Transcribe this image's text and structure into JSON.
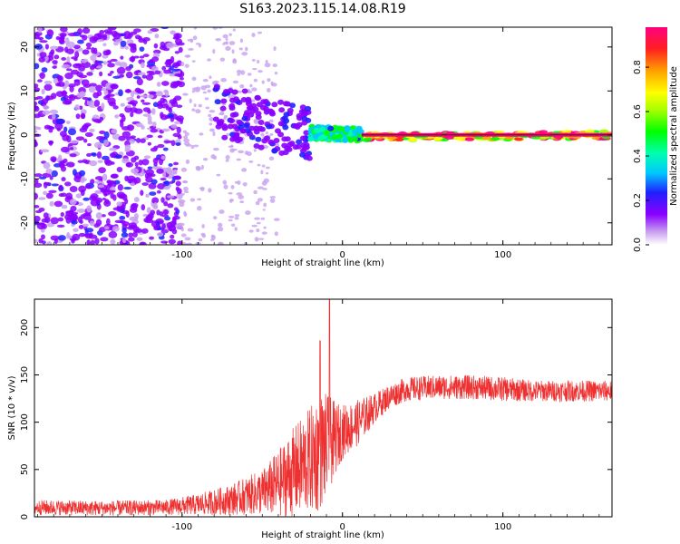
{
  "title": "S163.2023.115.14.08.R19",
  "chart_data": [
    {
      "type": "heatmap",
      "xlabel": "Height of straight line (km)",
      "ylabel": "Frequency (Hz)",
      "xlim": [
        -192,
        168
      ],
      "ylim": [
        -25,
        24.5
      ],
      "x_ticks": [
        "-100",
        "0",
        "100"
      ],
      "x_tick_values": [
        -100,
        0,
        100
      ],
      "y_ticks": [
        "-20",
        "-10",
        "0",
        "10",
        "20"
      ],
      "y_tick_values": [
        -20,
        -10,
        0,
        10,
        20
      ],
      "colorbar": {
        "label": "Normalized spectral amplitude",
        "range": [
          0,
          0.98
        ],
        "ticks": [
          "0.0",
          "0.2",
          "0.4",
          "0.6",
          "0.8"
        ],
        "tick_values": [
          0,
          0.2,
          0.4,
          0.6,
          0.8
        ]
      },
      "tone_segments": [
        {
          "x": [
            -80,
            -20
          ],
          "freq": [
            6,
            0
          ],
          "amplitude": 0.15
        },
        {
          "x": [
            -20,
            12
          ],
          "freq": [
            0.5,
            0
          ],
          "amplitude": 0.45
        },
        {
          "x": [
            12,
            168
          ],
          "freq": [
            -0.5,
            0
          ],
          "amplitude": 0.9
        }
      ],
      "noise_region": {
        "x": [
          -192,
          -100
        ],
        "freq": [
          -25,
          24.5
        ],
        "amplitude": 0.1
      }
    },
    {
      "type": "line",
      "xlabel": "Height of straight line (km)",
      "ylabel": "SNR (10 * v/v)",
      "xlim": [
        -192,
        168
      ],
      "ylim": [
        0,
        230
      ],
      "x_ticks": [
        "-100",
        "0",
        "100"
      ],
      "x_tick_values": [
        -100,
        0,
        100
      ],
      "y_ticks": [
        "0",
        "50",
        "100",
        "150",
        "200"
      ],
      "y_tick_values": [
        0,
        50,
        100,
        150,
        200
      ],
      "grid": false,
      "series": [
        {
          "color": "#ee3030",
          "envelope_x": [
            -192,
            -150,
            -110,
            -90,
            -70,
            -50,
            -40,
            -30,
            -20,
            -15,
            -10,
            -5,
            0,
            10,
            20,
            30,
            40,
            60,
            80,
            100,
            120,
            140,
            168
          ],
          "envelope_mean": [
            10,
            9,
            10,
            13,
            18,
            26,
            35,
            48,
            60,
            68,
            75,
            82,
            90,
            100,
            115,
            128,
            135,
            137,
            137,
            135,
            133,
            133,
            133
          ],
          "noise_amplitude": [
            5,
            5,
            5,
            7,
            10,
            15,
            22,
            30,
            35,
            40,
            35,
            25,
            18,
            15,
            10,
            8,
            8,
            8,
            8,
            8,
            7,
            7,
            7
          ],
          "peaks": [
            {
              "x": -14,
              "y": 186
            },
            {
              "x": -8,
              "y": 230
            }
          ]
        }
      ]
    }
  ]
}
